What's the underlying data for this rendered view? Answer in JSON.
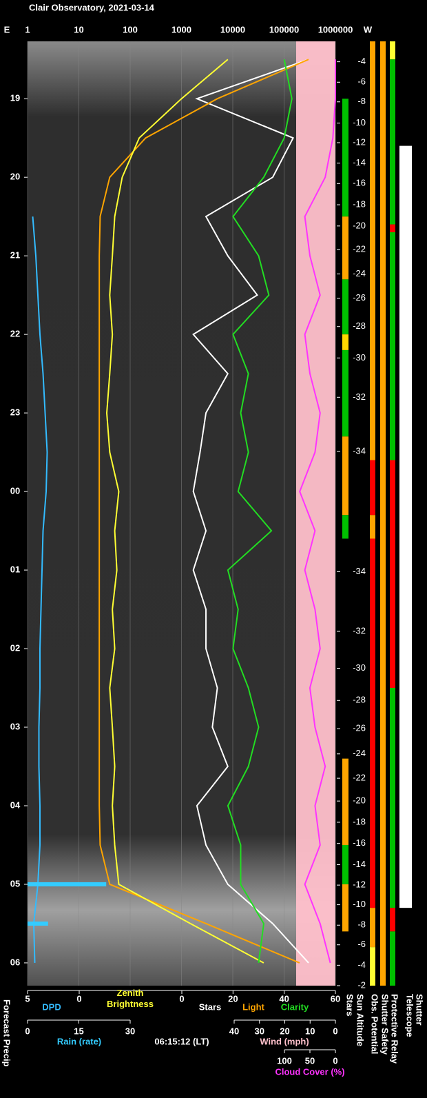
{
  "chart_data": {
    "type": "strip",
    "title": "Clair Observatory, 2021-03-14",
    "timestamp": "06:15:12 (LT)",
    "east_label": "E",
    "west_label": "W",
    "xscale": "log",
    "xlim": [
      1,
      1000000
    ],
    "xticks": [
      1,
      10,
      100,
      1000,
      10000,
      100000,
      1000000
    ],
    "grid": true,
    "ylim": [
      18.27,
      30.29
    ],
    "yticks": [
      19,
      20,
      21,
      22,
      23,
      {
        "value": 24,
        "label": "00"
      },
      {
        "value": 25,
        "label": "01"
      },
      {
        "value": 26,
        "label": "02"
      },
      {
        "value": 27,
        "label": "03"
      },
      {
        "value": 28,
        "label": "04"
      },
      {
        "value": 29,
        "label": "05"
      },
      {
        "value": 30,
        "label": "06"
      }
    ],
    "dpd_lim": [
      5,
      0
    ],
    "dpd_ticks": [
      5,
      0
    ],
    "clarity_lim": [
      0,
      60
    ],
    "clarity_ticks": [
      0,
      20,
      40,
      60
    ],
    "rain_lim": [
      0,
      30
    ],
    "rain_ticks": [
      0,
      15,
      30
    ],
    "wind_lim": [
      40,
      0
    ],
    "wind_ticks": [
      40,
      30,
      20,
      10,
      0
    ],
    "wind_label": "Wind (mph)",
    "cloud_lim": [
      100,
      0
    ],
    "cloud_ticks": [
      100,
      50,
      0
    ],
    "times": [
      18.5,
      19,
      19.5,
      20,
      20.5,
      21,
      21.5,
      22,
      22.5,
      23,
      23.5,
      24,
      24.5,
      25,
      25.5,
      26,
      26.5,
      27,
      27.5,
      28,
      28.5,
      29,
      29.5,
      30
    ],
    "series": [
      {
        "name": "Stars",
        "color": "#ffffff",
        "axis": "top",
        "values": [
          300000,
          2000,
          150000,
          60000,
          3000,
          8000,
          30000,
          1700,
          8000,
          3000,
          2300,
          1700,
          3000,
          1700,
          3000,
          3000,
          5000,
          4000,
          8000,
          2000,
          3000,
          8000,
          60000,
          300000
        ]
      },
      {
        "name": "Light",
        "color": "#ffa500",
        "axis": "top",
        "values": [
          300000,
          5000,
          200,
          40,
          26,
          25,
          25,
          25,
          25,
          25,
          25,
          25,
          25,
          25,
          25,
          25,
          25,
          25,
          25,
          25,
          26,
          40,
          3000,
          200000
        ]
      },
      {
        "name": "Zenith Brightness",
        "color": "#ffff33",
        "axis": "top",
        "values": [
          8000,
          1000,
          150,
          70,
          50,
          45,
          40,
          45,
          40,
          35,
          40,
          60,
          50,
          55,
          45,
          50,
          40,
          45,
          50,
          45,
          50,
          60,
          1500,
          40000
        ]
      },
      {
        "name": "Clarity",
        "color": "#22dd22",
        "axis": "clarity",
        "values": [
          40,
          43,
          40,
          32,
          20,
          30,
          34,
          20,
          26,
          23,
          26,
          22,
          35,
          18,
          22,
          20,
          26,
          30,
          26,
          18,
          23,
          23,
          32,
          30
        ]
      },
      {
        "name": "Cloud Cover (%)",
        "color": "#ff33ff",
        "axis": "cloud",
        "values": [
          0,
          0,
          5,
          20,
          60,
          50,
          30,
          60,
          50,
          30,
          40,
          70,
          40,
          60,
          40,
          30,
          50,
          40,
          20,
          40,
          30,
          60,
          30,
          10
        ]
      },
      {
        "name": "DPD",
        "color": "#33bbff",
        "axis": "dpd",
        "values": [
          null,
          null,
          null,
          null,
          4.5,
          4.2,
          4.0,
          3.8,
          3.5,
          3.3,
          3.1,
          3.2,
          3.5,
          3.6,
          3.7,
          3.8,
          3.8,
          3.9,
          3.9,
          3.8,
          3.8,
          4.0,
          4.4,
          4.3
        ]
      },
      {
        "name": "Rain (rate)",
        "color": "#33ccff",
        "axis": "rain",
        "values": [
          0,
          0,
          0,
          0,
          0,
          0,
          0,
          0,
          0,
          0,
          0,
          0,
          0,
          0,
          0,
          0,
          0,
          0,
          0,
          0,
          0,
          23,
          6,
          0
        ]
      }
    ],
    "sun_altitude_ticks": [
      {
        "time": 18.53,
        "altitude": -4
      },
      {
        "time": 18.79,
        "altitude": -6
      },
      {
        "time": 19.04,
        "altitude": -8
      },
      {
        "time": 19.31,
        "altitude": -10
      },
      {
        "time": 19.56,
        "altitude": -12
      },
      {
        "time": 19.82,
        "altitude": -14
      },
      {
        "time": 20.08,
        "altitude": -16
      },
      {
        "time": 20.35,
        "altitude": -18
      },
      {
        "time": 20.62,
        "altitude": -20
      },
      {
        "time": 20.92,
        "altitude": -22
      },
      {
        "time": 21.23,
        "altitude": -24
      },
      {
        "time": 21.54,
        "altitude": -26
      },
      {
        "time": 21.9,
        "altitude": -28
      },
      {
        "time": 22.3,
        "altitude": -30
      },
      {
        "time": 22.8,
        "altitude": -32
      },
      {
        "time": 23.49,
        "altitude": -34
      },
      {
        "time": 25.02,
        "altitude": -34
      },
      {
        "time": 25.78,
        "altitude": -32
      },
      {
        "time": 26.25,
        "altitude": -30
      },
      {
        "time": 26.66,
        "altitude": -28
      },
      {
        "time": 27.02,
        "altitude": -26
      },
      {
        "time": 27.34,
        "altitude": -24
      },
      {
        "time": 27.65,
        "altitude": -22
      },
      {
        "time": 27.94,
        "altitude": -20
      },
      {
        "time": 28.21,
        "altitude": -18
      },
      {
        "time": 28.48,
        "altitude": -16
      },
      {
        "time": 28.75,
        "altitude": -14
      },
      {
        "time": 29.01,
        "altitude": -12
      },
      {
        "time": 29.26,
        "altitude": -10
      },
      {
        "time": 29.52,
        "altitude": -8
      },
      {
        "time": 29.77,
        "altitude": -6
      },
      {
        "time": 30.03,
        "altitude": -4
      },
      {
        "time": 30.29,
        "altitude": -2
      }
    ],
    "strips": [
      {
        "name": "Stars",
        "segments": [
          {
            "from": 19.0,
            "to": 20.5,
            "color": "#00c000"
          },
          {
            "from": 20.5,
            "to": 21.3,
            "color": "#ffa500"
          },
          {
            "from": 21.3,
            "to": 22.0,
            "color": "#00c000"
          },
          {
            "from": 22.0,
            "to": 22.2,
            "color": "#ffd700"
          },
          {
            "from": 22.2,
            "to": 23.3,
            "color": "#00c000"
          },
          {
            "from": 23.3,
            "to": 24.3,
            "color": "#ffa500"
          },
          {
            "from": 24.3,
            "to": 24.6,
            "color": "#00c000"
          },
          {
            "from": 27.4,
            "to": 28.5,
            "color": "#ffa500"
          },
          {
            "from": 28.5,
            "to": 29.0,
            "color": "#00c000"
          },
          {
            "from": 29.0,
            "to": 29.6,
            "color": "#ffa500"
          }
        ]
      },
      {
        "name": "Sun Altitude",
        "segments": []
      },
      {
        "name": "Obs. Potential",
        "segments": [
          {
            "from": 18.27,
            "to": 23.6,
            "color": "#ffa500"
          },
          {
            "from": 23.6,
            "to": 24.3,
            "color": "#ff0000"
          },
          {
            "from": 24.3,
            "to": 24.6,
            "color": "#ffa500"
          },
          {
            "from": 24.6,
            "to": 29.3,
            "color": "#ff0000"
          },
          {
            "from": 29.3,
            "to": 29.8,
            "color": "#ffa500"
          },
          {
            "from": 29.8,
            "to": 30.29,
            "color": "#ffff33"
          }
        ]
      },
      {
        "name": "Shutter Safety",
        "segments": [
          {
            "from": 18.27,
            "to": 30.29,
            "color": "#ffa500"
          }
        ]
      },
      {
        "name": "Protective Relay",
        "segments": [
          {
            "from": 18.27,
            "to": 18.5,
            "color": "#ffff33"
          },
          {
            "from": 18.5,
            "to": 20.6,
            "color": "#00c000"
          },
          {
            "from": 20.6,
            "to": 20.7,
            "color": "#ff0000"
          },
          {
            "from": 20.7,
            "to": 23.6,
            "color": "#00c000"
          },
          {
            "from": 23.6,
            "to": 26.5,
            "color": "#ff0000"
          },
          {
            "from": 26.5,
            "to": 29.3,
            "color": "#00c000"
          },
          {
            "from": 29.3,
            "to": 29.6,
            "color": "#ff0000"
          },
          {
            "from": 29.6,
            "to": 30.29,
            "color": "#00c000"
          }
        ]
      },
      {
        "name": "Telescope",
        "segments": []
      },
      {
        "name": "Shutter",
        "segments": [
          {
            "from": 19.6,
            "to": 29.3,
            "color": "#ffffff"
          }
        ]
      }
    ],
    "forecast_label": "Forecast Precip"
  }
}
